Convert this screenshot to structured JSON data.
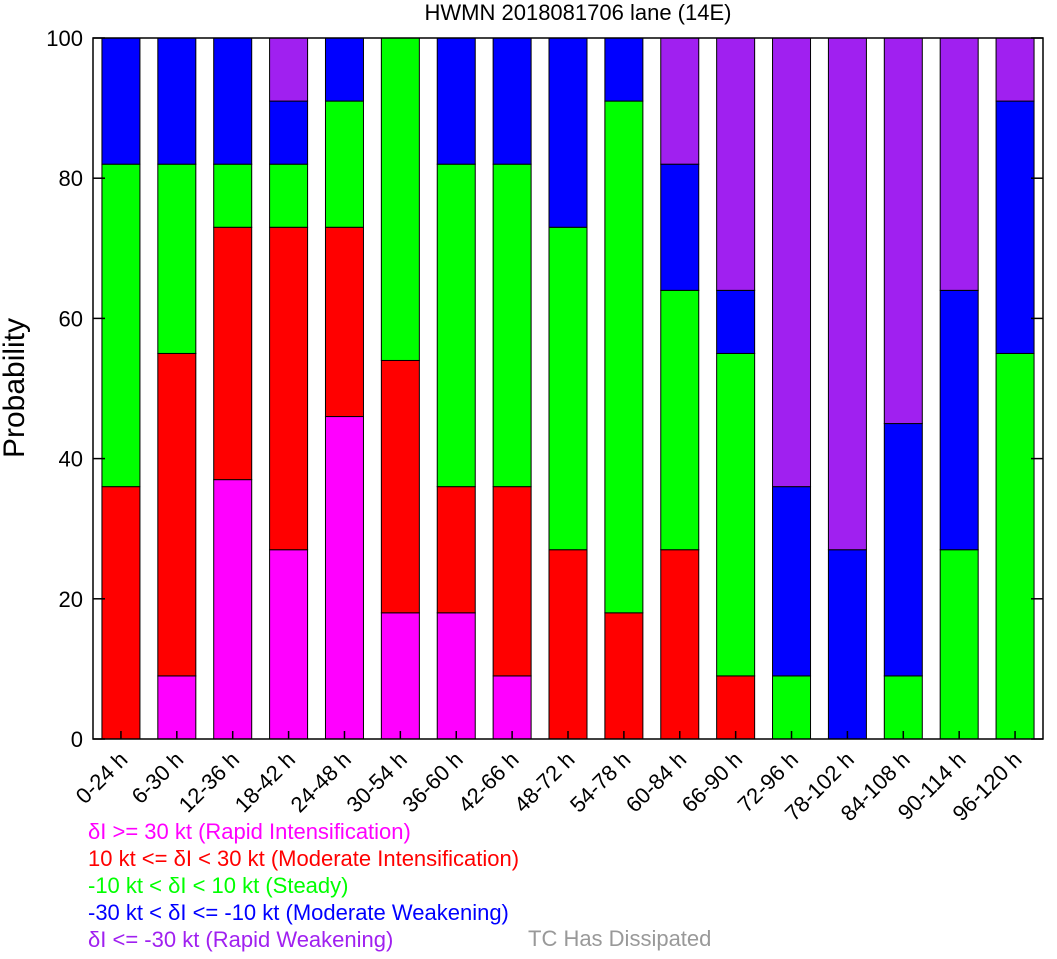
{
  "chart_data": {
    "type": "bar",
    "stacked": true,
    "title": "HWMN 2018081706 lane (14E)",
    "xlabel": "",
    "ylabel": "Probability",
    "ylim": [
      0,
      100
    ],
    "yticks": [
      0,
      20,
      40,
      60,
      80,
      100
    ],
    "grid": false,
    "categories": [
      "0-24 h",
      "6-30 h",
      "12-36 h",
      "18-42 h",
      "24-48 h",
      "30-54 h",
      "36-60 h",
      "42-66 h",
      "48-72 h",
      "54-78 h",
      "60-84 h",
      "66-90 h",
      "72-96 h",
      "78-102 h",
      "84-108 h",
      "90-114 h",
      "96-120 h"
    ],
    "series": [
      {
        "name": "δI >= 30 kt (Rapid Intensification)",
        "color": "#ff00ff",
        "values": [
          0,
          9,
          37,
          27,
          46,
          18,
          18,
          9,
          0,
          0,
          0,
          0,
          0,
          0,
          0,
          0,
          0
        ]
      },
      {
        "name": "10 kt <= δI < 30 kt (Moderate Intensification)",
        "color": "#ff0000",
        "values": [
          36,
          46,
          36,
          46,
          27,
          36,
          18,
          27,
          27,
          18,
          27,
          9,
          0,
          0,
          0,
          0,
          0
        ]
      },
      {
        "name": "-10 kt < δI < 10 kt (Steady)",
        "color": "#00ff00",
        "values": [
          46,
          27,
          9,
          9,
          18,
          46,
          46,
          46,
          46,
          73,
          37,
          46,
          9,
          0,
          9,
          27,
          55
        ]
      },
      {
        "name": "-30 kt < δI <= -10 kt (Moderate Weakening)",
        "color": "#0000ff",
        "values": [
          18,
          18,
          18,
          9,
          9,
          0,
          18,
          18,
          27,
          9,
          18,
          9,
          27,
          27,
          36,
          37,
          36
        ]
      },
      {
        "name": "δI <= -30 kt (Rapid Weakening)",
        "color": "#a020f0",
        "values": [
          0,
          0,
          0,
          9,
          0,
          0,
          0,
          0,
          0,
          0,
          18,
          36,
          64,
          73,
          55,
          36,
          9
        ]
      }
    ],
    "note": {
      "label": "TC Has Dissipated",
      "color": "#999999"
    }
  }
}
